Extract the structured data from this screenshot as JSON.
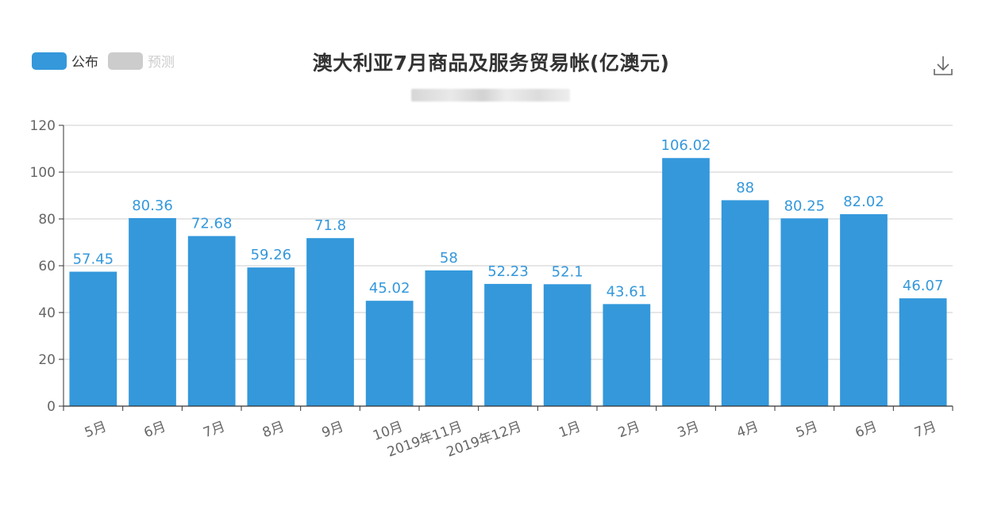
{
  "legend": {
    "items": [
      {
        "label": "公布",
        "color": "#3498db",
        "text_color": "#333333"
      },
      {
        "label": "预测",
        "color": "#cccccc",
        "text_color": "#cccccc"
      }
    ]
  },
  "title": "澳大利亚7月商品及服务贸易帐(亿澳元)",
  "toolbar": {
    "download_icon": "download-icon"
  },
  "colors": {
    "bar": "#3498db",
    "label": "#3498db",
    "axis_text": "#666666",
    "grid": "#cccccc",
    "axis_line": "#333333"
  },
  "chart_data": {
    "type": "bar",
    "title": "澳大利亚7月商品及服务贸易帐(亿澳元)",
    "xlabel": "",
    "ylabel": "",
    "ylim": [
      0,
      120
    ],
    "yticks": [
      0,
      20,
      40,
      60,
      80,
      100,
      120
    ],
    "grid": true,
    "categories": [
      "5月",
      "6月",
      "7月",
      "8月",
      "9月",
      "10月",
      "2019年11月",
      "2019年12月",
      "1月",
      "2月",
      "3月",
      "4月",
      "5月",
      "6月",
      "7月"
    ],
    "series": [
      {
        "name": "公布",
        "values": [
          57.45,
          80.36,
          72.68,
          59.26,
          71.8,
          45.02,
          58,
          52.23,
          52.1,
          43.61,
          106.02,
          88,
          80.25,
          82.02,
          46.07
        ]
      }
    ]
  }
}
